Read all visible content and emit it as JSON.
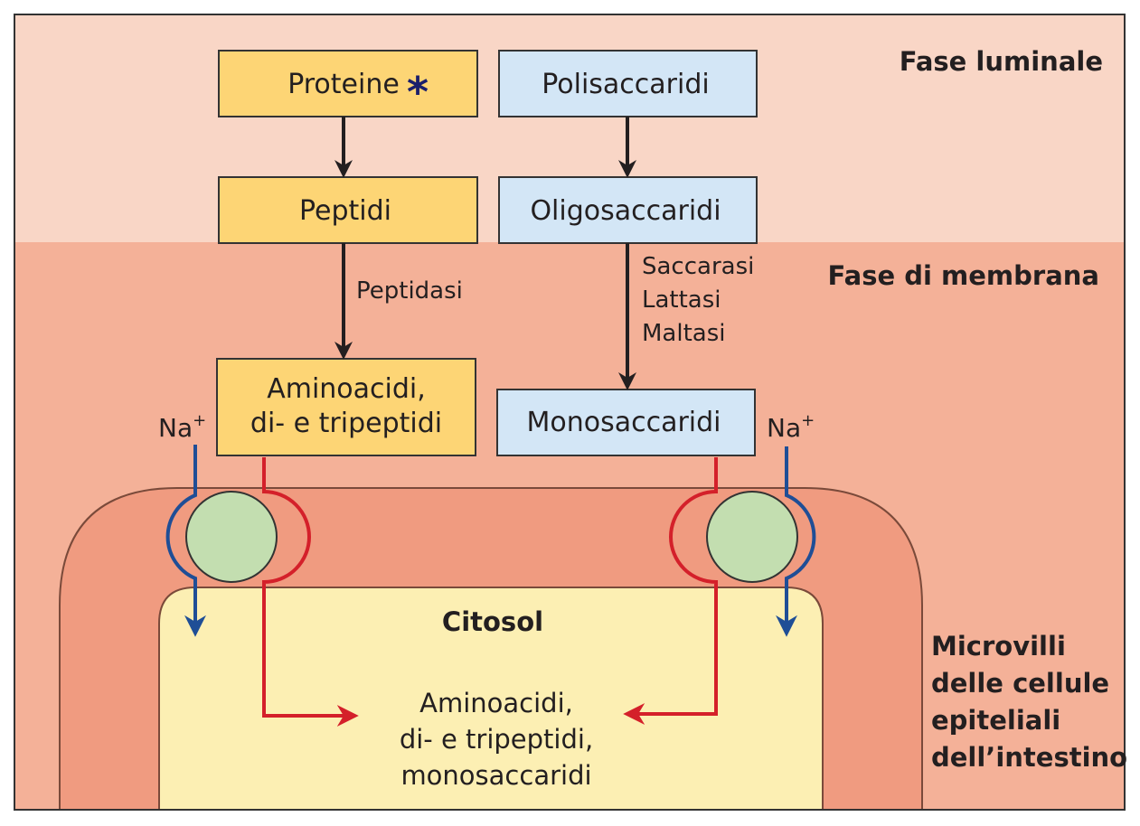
{
  "phases": {
    "luminal": "Fase luminale",
    "membrane": "Fase di membrana",
    "microvilli": [
      "Microvilli",
      "delle cellule",
      "epiteliali",
      "dell’intestino"
    ]
  },
  "proteins_path": {
    "proteins": "Proteine",
    "asterisk": "*",
    "peptides": "Peptidi",
    "enzyme": "Peptidasi",
    "products": [
      "Aminoacidi,",
      "di- e tripeptidi"
    ]
  },
  "carbs_path": {
    "polysaccharides": "Polisaccaridi",
    "oligosaccharides": "Oligosaccaridi",
    "enzymes": [
      "Saccarasi",
      "Lattasi",
      "Maltasi"
    ],
    "monosaccharides": "Monosaccaridi"
  },
  "sodium": {
    "left_base": "Na",
    "left_sup": "+",
    "right_base": "Na",
    "right_sup": "+"
  },
  "cytosol": {
    "title": "Citosol",
    "lines": [
      "Aminoacidi,",
      "di- e tripeptidi,",
      "monosaccaridi"
    ]
  },
  "colors": {
    "lumen": "#f9d6c6",
    "membrane": "#f4b198",
    "microvilli": "#f09b80",
    "cytosol": "#fcefb3",
    "protein_box": "#fdd575",
    "carb_box": "#d3e6f6",
    "transporter": "#c3deb0",
    "blue": "#1f4e96",
    "red": "#d4202a"
  }
}
